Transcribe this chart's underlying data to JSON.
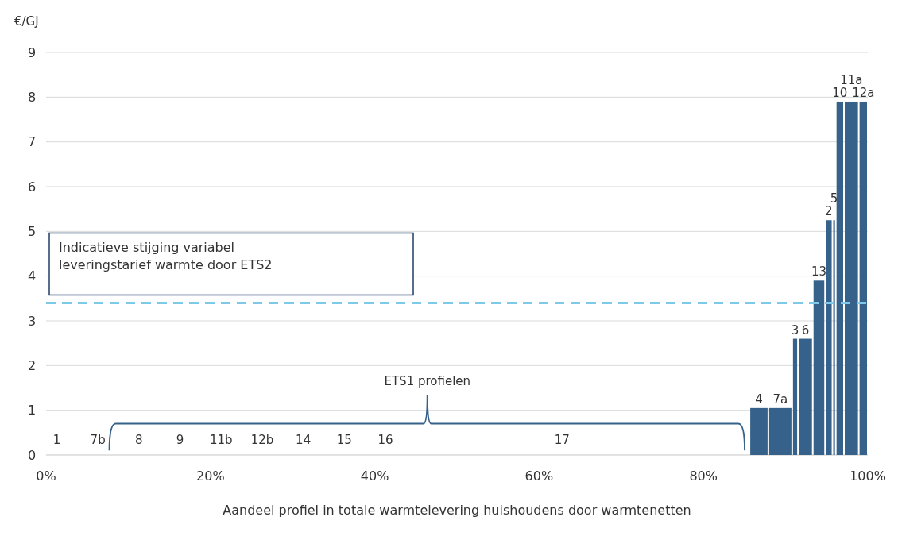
{
  "chart_data": {
    "type": "histogram",
    "xlabel": "Aandeel profiel in totale warmtelevering huishoudens door warmtenetten",
    "ylabel": "€/GJ",
    "bins": [
      85.6,
      87.9,
      90.8,
      91.5,
      93.3,
      94.8,
      95.7,
      96.1,
      97.1,
      98.9,
      100
    ],
    "values": [
      1.05,
      1.05,
      2.6,
      2.6,
      3.9,
      5.25,
      5.25,
      7.9,
      7.9,
      7.9
    ],
    "color": "#35618a",
    "xlim": [
      0,
      100
    ],
    "xticks": [
      {
        "value": 0,
        "label": "0%"
      },
      {
        "value": 20,
        "label": "20%"
      },
      {
        "value": 40,
        "label": "40%"
      },
      {
        "value": 60,
        "label": "60%"
      },
      {
        "value": 80,
        "label": "80%"
      },
      {
        "value": 100,
        "label": "100%"
      }
    ],
    "ylim": [
      0,
      9
    ],
    "yticks": [
      0,
      1,
      2,
      3,
      4,
      5,
      6,
      7,
      8,
      9
    ],
    "grid": "y",
    "ref_lines": [
      {
        "axis": "y",
        "value": 3.4,
        "label": "Indicatieve stijging variabel leveringstarief warmte door ETS2",
        "color": "#7ec8e8",
        "line_style": "dashed"
      }
    ],
    "annotations": [
      "1",
      "7b",
      "8",
      "9",
      "11b",
      "12b",
      "14",
      "15",
      "16",
      "17",
      "ETS1 profielen",
      {
        "text": "4",
        "x": 86.75,
        "y": 1.05
      },
      {
        "text": "7a",
        "x": 89.35,
        "y": 1.05
      },
      {
        "text": "3",
        "x": 91.15,
        "y": 2.6
      },
      {
        "text": "6",
        "x": 92.4,
        "y": 2.6
      },
      {
        "text": "13",
        "x": 94.05,
        "y": 3.9
      },
      {
        "text": "2",
        "x": 95.25,
        "y": 5.25
      },
      {
        "text": "5",
        "x": 95.9,
        "y": 5.25
      },
      {
        "text": "10",
        "x": 96.6,
        "y": 7.9
      },
      {
        "text": "11a",
        "x": 98.0,
        "y": 7.9
      },
      {
        "text": "12a",
        "x": 99.45,
        "y": 7.9
      }
    ]
  }
}
